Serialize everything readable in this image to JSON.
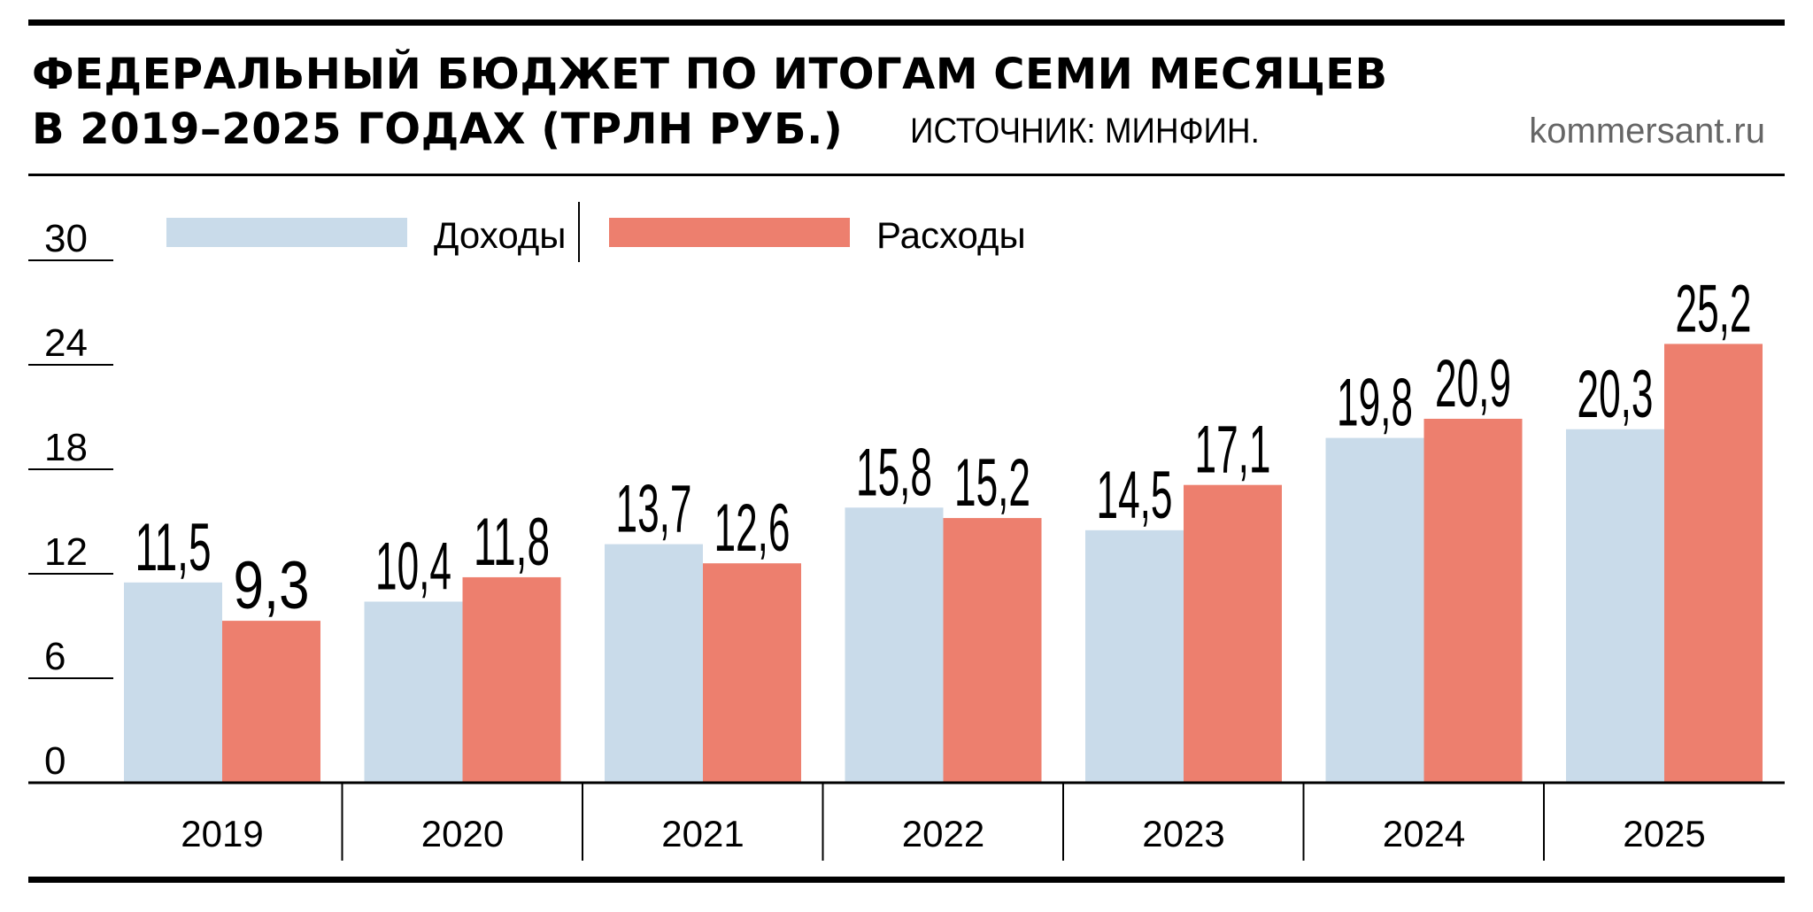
{
  "header": {
    "title_line1": "ФЕДЕРАЛЬНЫЙ БЮДЖЕТ ПО ИТОГАМ СЕМИ МЕСЯЦЕВ",
    "title_line2": "В 2019–2025 ГОДАХ (ТРЛН РУБ.)",
    "source": "ИСТОЧНИК: МИНФИН.",
    "site": "kommersant.ru"
  },
  "colors": {
    "income": "#c9dbea",
    "expenses": "#ed7f6e",
    "axis": "#000000"
  },
  "chart_data": {
    "type": "bar",
    "categories": [
      "2019",
      "2020",
      "2021",
      "2022",
      "2023",
      "2024",
      "2025"
    ],
    "series": [
      {
        "name": "Доходы",
        "values": [
          11.5,
          10.4,
          13.7,
          15.8,
          14.5,
          19.8,
          20.3
        ],
        "labels": [
          "11,5",
          "10,4",
          "13,7",
          "15,8",
          "14,5",
          "19,8",
          "20,3"
        ]
      },
      {
        "name": "Расходы",
        "values": [
          9.3,
          11.8,
          12.6,
          15.2,
          17.1,
          20.9,
          25.2
        ],
        "labels": [
          "9,3",
          "11,8",
          "12,6",
          "15,2",
          "17,1",
          "20,9",
          "25,2"
        ]
      }
    ],
    "ylim": [
      0,
      30
    ],
    "yticks": [
      "0",
      "6",
      "12",
      "18",
      "24",
      "30"
    ],
    "legend": "top-left",
    "grid": false
  }
}
